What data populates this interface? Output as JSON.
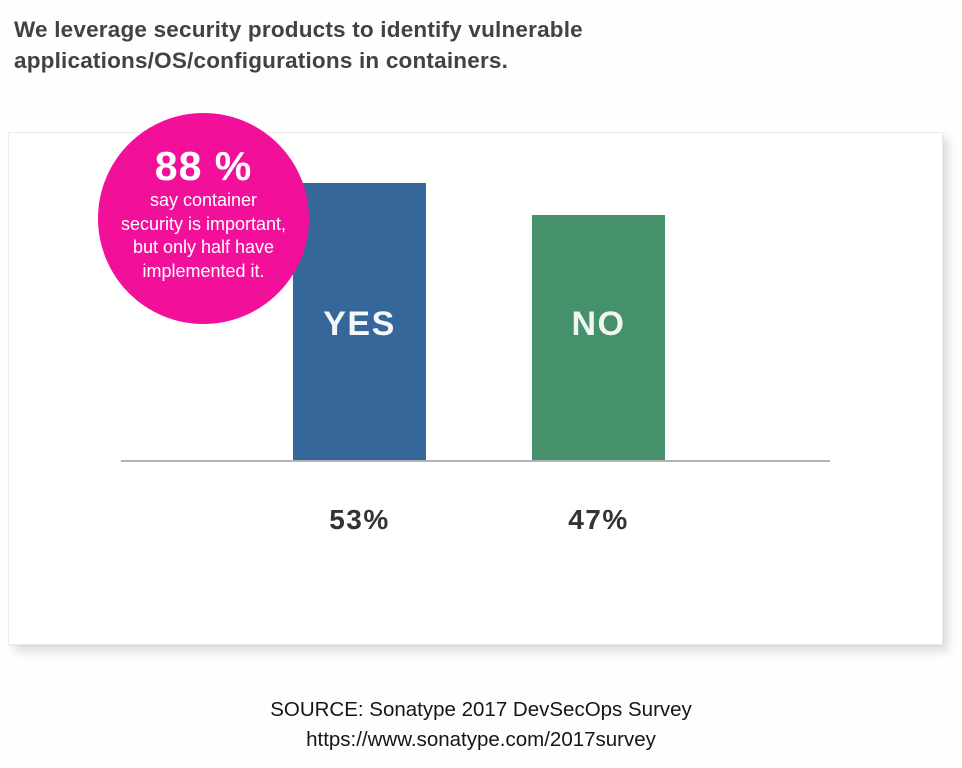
{
  "page": {
    "title_lines": [
      "We leverage security products to identify vulnerable",
      "applications/OS/configurations in containers."
    ],
    "source_lines": [
      "SOURCE: Sonatype 2017 DevSecOps Survey",
      "https://www.sonatype.com/2017survey"
    ]
  },
  "badge": {
    "value": "88 %",
    "lines": [
      "say container",
      "security is important,",
      "but only half have",
      "implemented it."
    ],
    "color": "#F2109B"
  },
  "chart_data": {
    "type": "bar",
    "title": "We leverage security products to identify vulnerable applications/OS/configurations in containers.",
    "categories": [
      "YES",
      "NO"
    ],
    "values": [
      53,
      47
    ],
    "value_labels": [
      "53%",
      "47%"
    ],
    "bar_colors": [
      "#35679A",
      "#44916B"
    ],
    "baseline_color": "#b4b4b4",
    "ylim": [
      0,
      100
    ],
    "grid": false,
    "legend": "none",
    "annotation": "88 % say container security is important, but only half have implemented it.",
    "source": "SOURCE: Sonatype 2017 DevSecOps Survey https://www.sonatype.com/2017survey"
  }
}
